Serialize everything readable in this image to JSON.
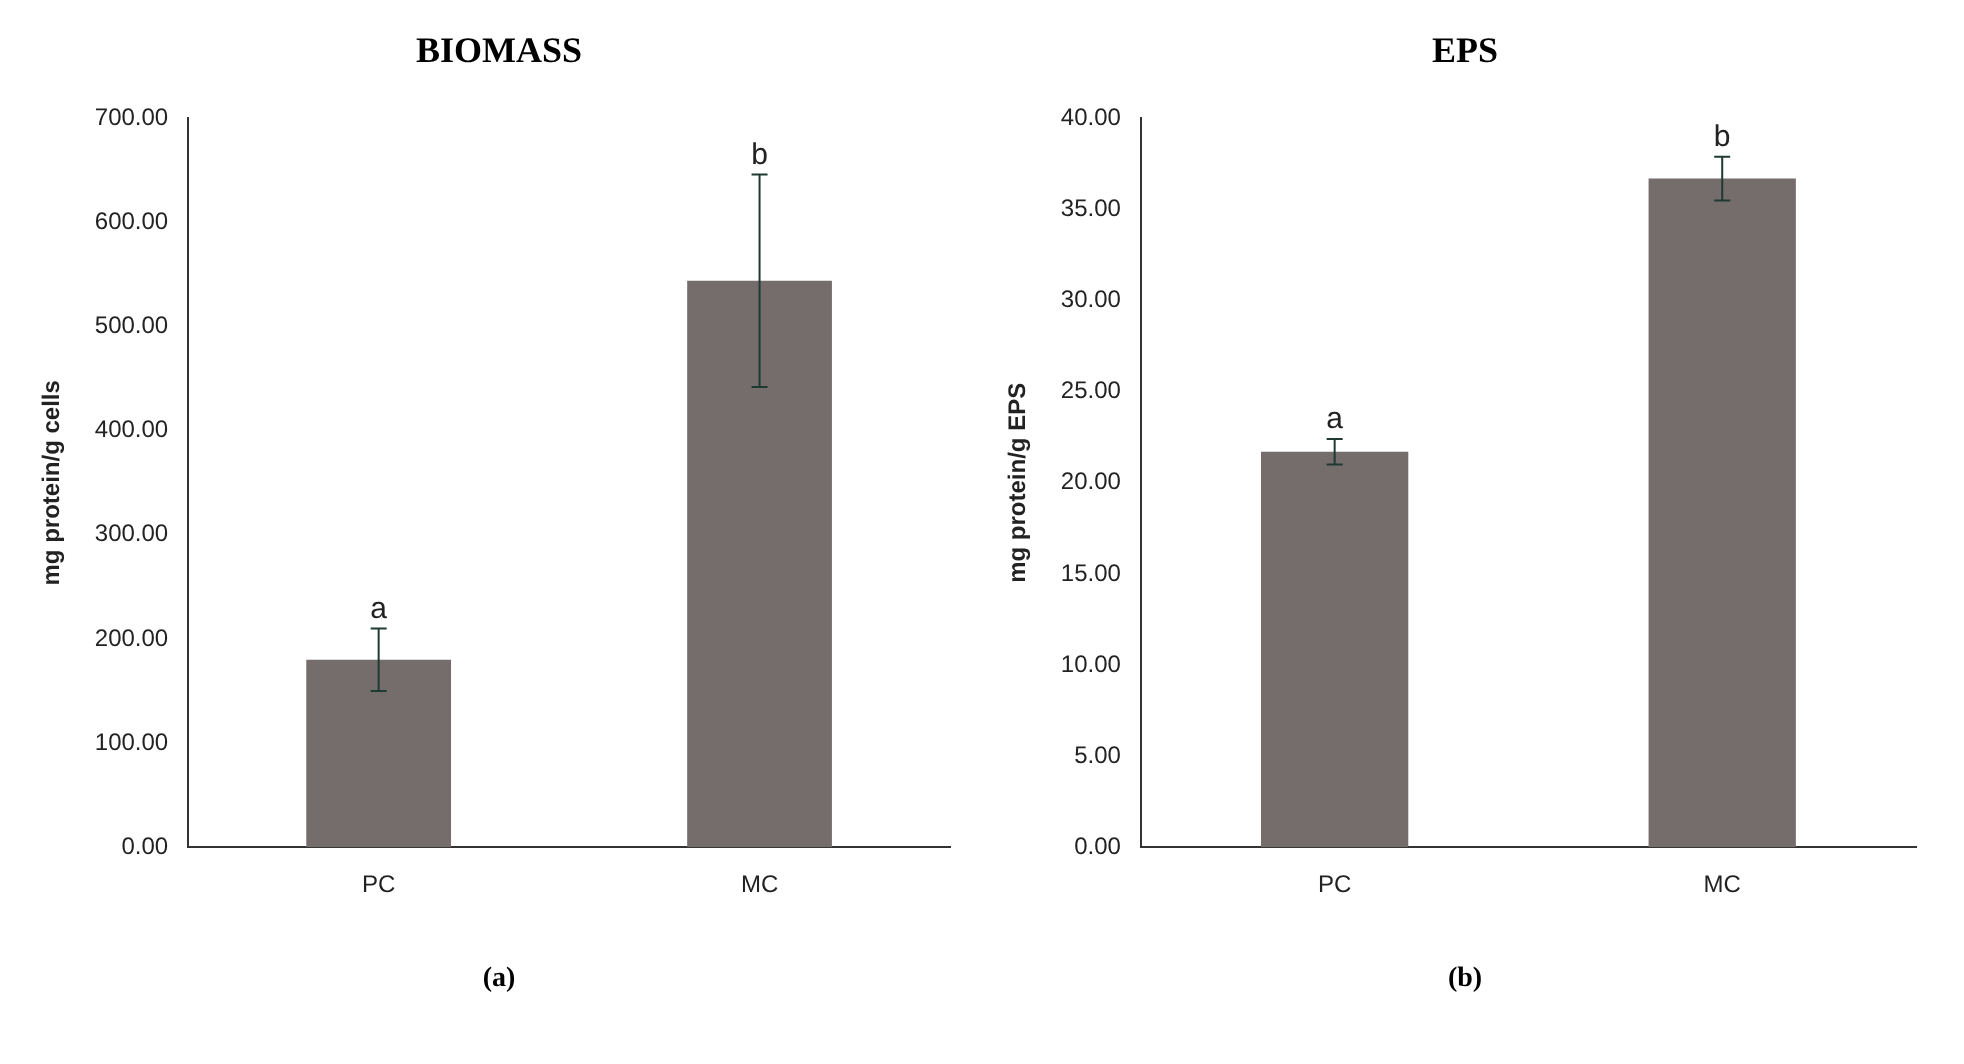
{
  "chart_data": [
    {
      "type": "bar",
      "title": "BIOMASS",
      "ylabel": "mg protein/g cells",
      "categories": [
        "PC",
        "MC"
      ],
      "values": [
        180,
        544
      ],
      "errors": [
        30,
        102
      ],
      "color": "#756c6c",
      "ylim": [
        0,
        700
      ],
      "yticks": [
        {
          "value": 0,
          "label": "0.00"
        },
        {
          "value": 100,
          "label": "100.00"
        },
        {
          "value": 200,
          "label": "200.00"
        },
        {
          "value": 300,
          "label": "300.00"
        },
        {
          "value": 400,
          "label": "400.00"
        },
        {
          "value": 500,
          "label": "500.00"
        },
        {
          "value": 600,
          "label": "600.00"
        },
        {
          "value": 700,
          "label": "700.00"
        }
      ],
      "grid": false,
      "legend": false,
      "annotations": [
        {
          "text": "a",
          "x": "PC",
          "y": 210
        },
        {
          "text": "b",
          "x": "MC",
          "y": 646
        },
        "(a)"
      ]
    },
    {
      "type": "bar",
      "title": "EPS",
      "ylabel": "mg protein/g EPS",
      "categories": [
        "PC",
        "MC"
      ],
      "values": [
        21.7,
        36.7
      ],
      "errors": [
        0.7,
        1.2
      ],
      "color": "#756c6c",
      "ylim": [
        0,
        40
      ],
      "yticks": [
        {
          "value": 0,
          "label": "0.00"
        },
        {
          "value": 5,
          "label": "5.00"
        },
        {
          "value": 10,
          "label": "10.00"
        },
        {
          "value": 15,
          "label": "15.00"
        },
        {
          "value": 20,
          "label": "20.00"
        },
        {
          "value": 25,
          "label": "25.00"
        },
        {
          "value": 30,
          "label": "30.00"
        },
        {
          "value": 35,
          "label": "35.00"
        },
        {
          "value": 40,
          "label": "40.00"
        }
      ],
      "grid": false,
      "legend": false,
      "annotations": [
        {
          "text": "a",
          "x": "PC",
          "y": 22.4
        },
        {
          "text": "b",
          "x": "MC",
          "y": 37.9
        },
        "(b)"
      ]
    }
  ]
}
